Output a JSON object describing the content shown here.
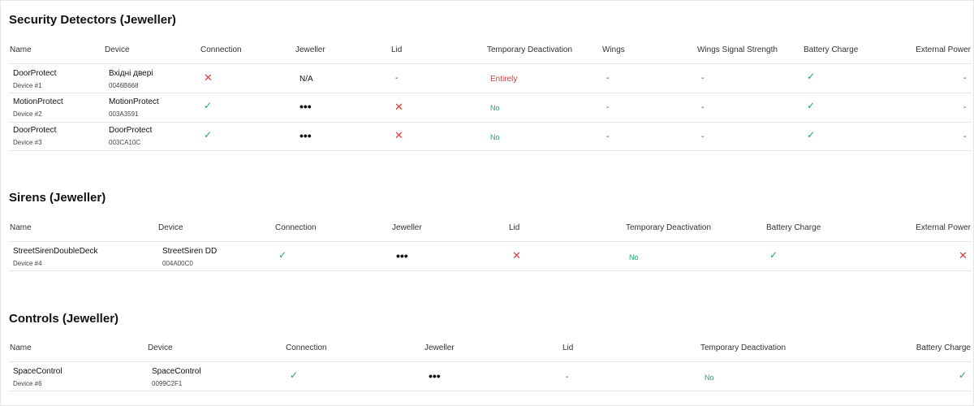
{
  "sections": [
    {
      "title": "Security Detectors (Jeweller)",
      "headers": [
        "Name",
        "Device",
        "Connection",
        "Jeweller",
        "Lid",
        "Temporary Deactivation",
        "Wings",
        "Wings Signal Strength",
        "Battery Charge",
        "External Power"
      ],
      "rows": [
        {
          "name": "DoorProtect",
          "device_num": "Device #1",
          "device": "Вхідні двері",
          "device_id": "0046B668",
          "connection": "cross-icon",
          "jeweller": "N/A",
          "lid": "-",
          "deactivation": "Entirely",
          "wings": "-",
          "wings_signal": "-",
          "battery": "check-icon",
          "external_power": "-"
        },
        {
          "name": "MotionProtect",
          "device_num": "Device #2",
          "device": "MotionProtect",
          "device_id": "003A3591",
          "connection": "check-icon",
          "jeweller": "dots-icon",
          "lid": "cross-icon",
          "deactivation": "No",
          "wings": "-",
          "wings_signal": "-",
          "battery": "check-icon",
          "external_power": "-"
        },
        {
          "name": "DoorProtect",
          "device_num": "Device #3",
          "device": "DoorProtect",
          "device_id": "003CA10C",
          "connection": "check-icon",
          "jeweller": "dots-icon",
          "lid": "cross-icon",
          "deactivation": "No",
          "wings": "-",
          "wings_signal": "-",
          "battery": "check-icon",
          "external_power": "-"
        }
      ]
    },
    {
      "title": "Sirens (Jeweller)",
      "headers": [
        "Name",
        "Device",
        "Connection",
        "Jeweller",
        "Lid",
        "Temporary Deactivation",
        "Battery Charge",
        "External Power"
      ],
      "rows": [
        {
          "name": "StreetSirenDoubleDeck",
          "device_num": "Device #4",
          "device": "StreetSiren DD",
          "device_id": "004A00C0",
          "connection": "check-icon",
          "jeweller": "dots-icon",
          "lid": "cross-icon",
          "deactivation": "No",
          "battery": "check-icon",
          "external_power": "cross-icon"
        }
      ]
    },
    {
      "title": "Controls (Jeweller)",
      "headers": [
        "Name",
        "Device",
        "Connection",
        "Jeweller",
        "Lid",
        "Temporary Deactivation",
        "Battery Charge"
      ],
      "rows": [
        {
          "name": "SpaceControl",
          "device_num": "Device #6",
          "device": "SpaceControl",
          "device_id": "0099C2F1",
          "connection": "check-icon",
          "jeweller": "dots-icon",
          "lid": "-",
          "deactivation": "No",
          "battery": "check-icon"
        }
      ]
    }
  ],
  "colors": {
    "ok": "#1aa86b",
    "error": "#e53935"
  },
  "icons": {
    "check": "✓",
    "cross": "✕",
    "dots": "•••"
  }
}
